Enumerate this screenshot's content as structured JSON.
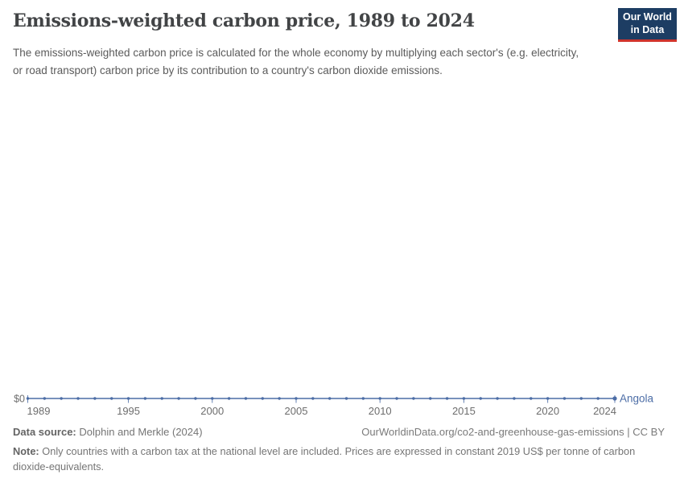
{
  "header": {
    "title": "Emissions-weighted carbon price, 1989 to 2024",
    "subtitle": "The emissions-weighted carbon price is calculated for the whole economy by multiplying each sector's (e.g. electricity, or road transport) carbon price by its contribution to a country's carbon dioxide emissions.",
    "logo": {
      "line1": "Our World",
      "line2": "in Data",
      "bg_color": "#1d3d63",
      "accent_color": "#d0342c"
    }
  },
  "chart_data": {
    "type": "line",
    "title": "Emissions-weighted carbon price, 1989 to 2024",
    "xlabel": "",
    "ylabel": "",
    "x_start": 1989,
    "x_end": 2024,
    "x_tick_labels": [
      1989,
      1995,
      2000,
      2005,
      2010,
      2015,
      2020,
      2024
    ],
    "y_tick_labels": [
      "$0"
    ],
    "ylim": [
      0,
      0
    ],
    "grid": false,
    "legend_position": "end-of-line",
    "end_label": "Angola",
    "series": [
      {
        "name": "Angola",
        "color": "#4c6da6",
        "x": [
          1989,
          1990,
          1991,
          1992,
          1993,
          1994,
          1995,
          1996,
          1997,
          1998,
          1999,
          2000,
          2001,
          2002,
          2003,
          2004,
          2005,
          2006,
          2007,
          2008,
          2009,
          2010,
          2011,
          2012,
          2013,
          2014,
          2015,
          2016,
          2017,
          2018,
          2019,
          2020,
          2021,
          2022,
          2023,
          2024
        ],
        "values": [
          0,
          0,
          0,
          0,
          0,
          0,
          0,
          0,
          0,
          0,
          0,
          0,
          0,
          0,
          0,
          0,
          0,
          0,
          0,
          0,
          0,
          0,
          0,
          0,
          0,
          0,
          0,
          0,
          0,
          0,
          0,
          0,
          0,
          0,
          0,
          0
        ]
      }
    ]
  },
  "footer": {
    "datasource_label": "Data source:",
    "datasource_value": "Dolphin and Merkle (2024)",
    "attribution": "OurWorldinData.org/co2-and-greenhouse-gas-emissions | CC BY",
    "note_label": "Note:",
    "note_value": "Only countries with a carbon tax at the national level are included. Prices are expressed in constant 2019 US$ per tonne of carbon dioxide-equivalents."
  }
}
